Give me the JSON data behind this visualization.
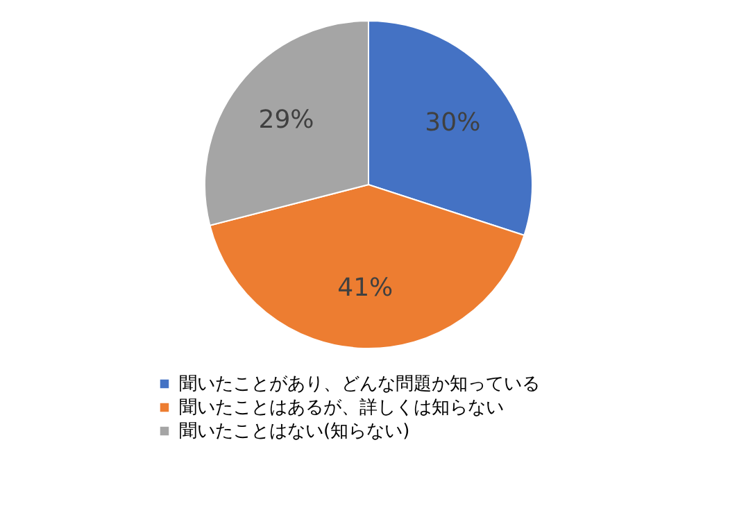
{
  "chart_data": {
    "type": "pie",
    "categories": [
      "聞いたことがあり、どんな問題か知っている",
      "聞いたことはあるが、詳しくは知らない",
      "聞いたことはない(知らない)"
    ],
    "values": [
      30,
      41,
      29
    ],
    "colors": [
      "#4472c4",
      "#ed7d31",
      "#a5a5a5"
    ],
    "value_labels": [
      "30%",
      "41%",
      "29%"
    ],
    "legend": "bottom"
  }
}
